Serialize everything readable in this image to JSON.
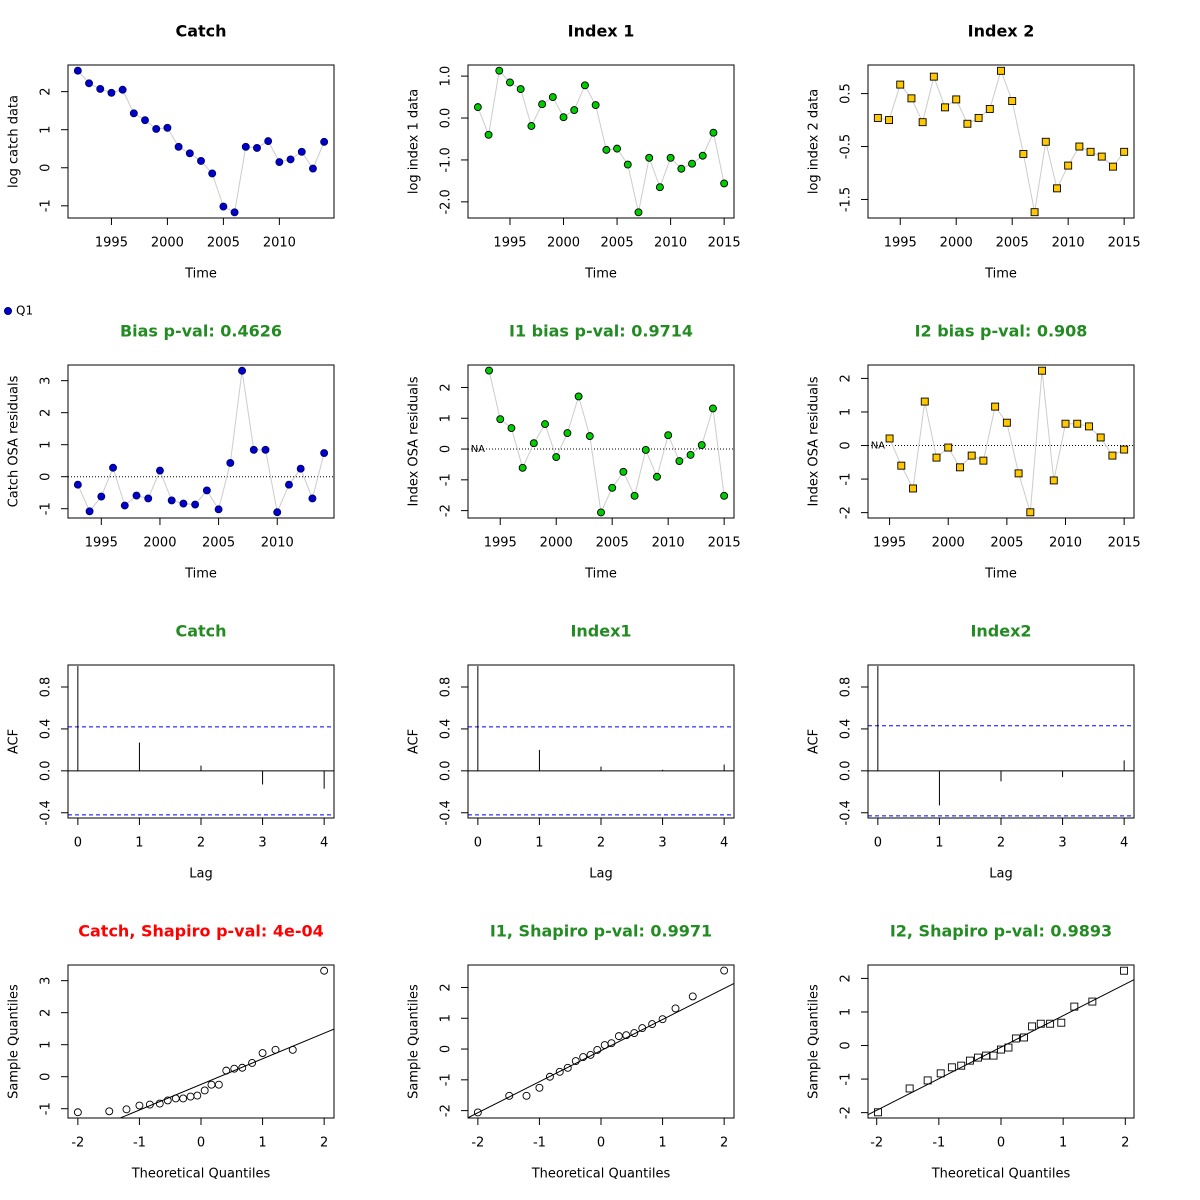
{
  "chart_data": [
    {
      "type": "line",
      "title": "Catch",
      "title_color": "#000000",
      "x_label": "Time",
      "y_label": "log catch data",
      "x": [
        1992,
        1993,
        1994,
        1995,
        1996,
        1997,
        1998,
        1999,
        2000,
        2001,
        2002,
        2003,
        2004,
        2005,
        2006,
        2007,
        2008,
        2009,
        2010,
        2011,
        2012,
        2013,
        2014
      ],
      "series": [
        {
          "name": "Q1",
          "color": "#0000cd",
          "values": [
            2.55,
            2.22,
            2.07,
            1.97,
            2.05,
            1.43,
            1.25,
            1.02,
            1.05,
            0.55,
            0.38,
            0.18,
            -0.15,
            -1.02,
            -1.17,
            0.55,
            0.52,
            0.7,
            0.15,
            0.22,
            0.42,
            -0.02,
            0.68
          ]
        }
      ],
      "marker": "circle",
      "xlim": [
        1991.12,
        2014.88
      ],
      "ylim": [
        -1.32,
        2.7
      ],
      "xticks": [
        1995,
        2000,
        2005,
        2010
      ],
      "yticks": [
        -1,
        0,
        1,
        2
      ]
    },
    {
      "type": "line",
      "title": "Index 1",
      "title_color": "#000000",
      "x_label": "Time",
      "y_label": "log index 1 data",
      "x": [
        1992,
        1993,
        1994,
        1995,
        1996,
        1997,
        1998,
        1999,
        2000,
        2001,
        2002,
        2003,
        2004,
        2005,
        2006,
        2007,
        2008,
        2009,
        2010,
        2011,
        2012,
        2013,
        2014,
        2015
      ],
      "values": [
        0.26,
        -0.4,
        1.13,
        0.85,
        0.69,
        -0.19,
        0.33,
        0.5,
        0.02,
        0.19,
        0.78,
        0.31,
        -0.76,
        -0.73,
        -1.11,
        -2.25,
        -0.95,
        -1.65,
        -0.95,
        -1.21,
        -1.09,
        -0.9,
        -0.35,
        -1.56
      ],
      "color": "#00cd00",
      "marker": "circle",
      "xlim": [
        1991.08,
        2015.92
      ],
      "ylim": [
        -2.385,
        1.265
      ],
      "xticks": [
        1995,
        2000,
        2005,
        2010,
        2015
      ],
      "yticks": [
        {
          "value": -2,
          "label": "-2.0"
        },
        {
          "value": -1,
          "label": "-1.0"
        },
        {
          "value": 0,
          "label": "0.0"
        },
        {
          "value": 1,
          "label": "1.0"
        }
      ]
    },
    {
      "type": "line",
      "title": "Index 2",
      "title_color": "#000000",
      "x_label": "Time",
      "y_label": "log index 2 data",
      "x": [
        1993,
        1994,
        1995,
        1996,
        1997,
        1998,
        1999,
        2000,
        2001,
        2002,
        2003,
        2004,
        2005,
        2006,
        2007,
        2008,
        2009,
        2010,
        2011,
        2012,
        2013,
        2014,
        2015
      ],
      "values": [
        0.04,
        0.0,
        0.67,
        0.41,
        -0.04,
        0.82,
        0.24,
        0.39,
        -0.07,
        0.04,
        0.21,
        0.93,
        0.36,
        -0.64,
        -1.74,
        -0.41,
        -1.29,
        -0.86,
        -0.5,
        -0.6,
        -0.69,
        -0.88,
        -0.6
      ],
      "color": "#ffc800",
      "marker": "square",
      "xlim": [
        1992.12,
        2015.88
      ],
      "ylim": [
        -1.85,
        1.04
      ],
      "xticks": [
        1995,
        2000,
        2005,
        2010,
        2015
      ],
      "yticks": [
        -1.5,
        -0.5,
        0.5
      ]
    },
    {
      "type": "line",
      "title": "Bias p-val: 0.4626",
      "title_color": "#228b22",
      "x_label": "Time",
      "y_label": "Catch OSA residuals",
      "x": [
        1993,
        1994,
        1995,
        1996,
        1997,
        1998,
        1999,
        2000,
        2001,
        2002,
        2003,
        2004,
        2005,
        2006,
        2007,
        2008,
        2009,
        2010,
        2011,
        2012,
        2013,
        2014
      ],
      "values": [
        -0.25,
        -1.08,
        -0.62,
        0.28,
        -0.9,
        -0.59,
        -0.68,
        0.19,
        -0.74,
        -0.84,
        -0.87,
        -0.43,
        -1.02,
        0.43,
        3.31,
        0.84,
        0.84,
        -1.11,
        -0.25,
        0.25,
        -0.68,
        0.74
      ],
      "color": "#0000cd",
      "marker": "circle",
      "hline": 0,
      "xlim": [
        1992.16,
        2014.84
      ],
      "ylim": [
        -1.29,
        3.49
      ],
      "xticks": [
        1995,
        2000,
        2005,
        2010
      ],
      "yticks": [
        -1,
        0,
        1,
        2,
        3
      ]
    },
    {
      "type": "line",
      "title": "I1 bias p-val: 0.9714",
      "title_color": "#228b22",
      "x_label": "Time",
      "y_label": "Index OSA residuals",
      "x": [
        1993,
        1994,
        1995,
        1996,
        1997,
        1998,
        1999,
        2000,
        2001,
        2002,
        2003,
        2004,
        2005,
        2006,
        2007,
        2008,
        2009,
        2010,
        2011,
        2012,
        2013,
        2014,
        2015
      ],
      "values": [
        null,
        2.55,
        0.97,
        0.68,
        -0.61,
        0.19,
        0.81,
        -0.26,
        0.52,
        1.71,
        0.42,
        -2.06,
        -1.26,
        -0.74,
        -1.52,
        -0.03,
        -0.9,
        0.45,
        -0.39,
        -0.19,
        0.13,
        1.32,
        -1.52
      ],
      "color": "#00cd00",
      "marker": "circle",
      "hline": 0,
      "annotations": [
        {
          "text": "NA",
          "x": 1993,
          "y": 0
        }
      ],
      "xlim": [
        1992.12,
        2015.88
      ],
      "ylim": [
        -2.24,
        2.73
      ],
      "xticks": [
        1995,
        2000,
        2005,
        2010,
        2015
      ],
      "yticks": [
        -2,
        -1,
        0,
        1,
        2
      ]
    },
    {
      "type": "line",
      "title": "I2 bias p-val: 0.908",
      "title_color": "#228b22",
      "x_label": "Time",
      "y_label": "Index OSA residuals",
      "x": [
        1994,
        1995,
        1996,
        1997,
        1998,
        1999,
        2000,
        2001,
        2002,
        2003,
        2004,
        2005,
        2006,
        2007,
        2008,
        2009,
        2010,
        2011,
        2012,
        2013,
        2014,
        2015
      ],
      "values": [
        null,
        0.21,
        -0.6,
        -1.28,
        1.31,
        -0.36,
        -0.06,
        -0.65,
        -0.3,
        -0.45,
        1.16,
        0.68,
        -0.83,
        -1.99,
        2.23,
        -1.04,
        0.65,
        0.65,
        0.57,
        0.24,
        -0.3,
        -0.12
      ],
      "color": "#ffc800",
      "marker": "square",
      "hline": 0,
      "annotations": [
        {
          "text": "NA",
          "x": 1994,
          "y": 0
        }
      ],
      "xlim": [
        1993.16,
        2015.84
      ],
      "ylim": [
        -2.16,
        2.4
      ],
      "xticks": [
        1995,
        2000,
        2005,
        2010,
        2015
      ],
      "yticks": [
        -2,
        -1,
        0,
        1,
        2
      ]
    },
    {
      "type": "acf",
      "title": "Catch",
      "title_color": "#228b22",
      "x_label": "Lag",
      "y_label": "ACF",
      "x": [
        0,
        1,
        2,
        3,
        4
      ],
      "values": [
        1,
        0.27,
        0.05,
        -0.13,
        -0.17
      ],
      "ci": 0.42,
      "ci_color": "#0000ff",
      "xlim": [
        -0.16,
        4.16
      ],
      "ylim": [
        -0.45,
        1.01
      ],
      "xticks": [
        0,
        1,
        2,
        3,
        4
      ],
      "yticks": [
        {
          "value": -0.4,
          "label": "-0.4"
        },
        {
          "value": 0,
          "label": "0.0"
        },
        {
          "value": 0.4,
          "label": "0.4"
        },
        {
          "value": 0.8,
          "label": "0.8"
        }
      ]
    },
    {
      "type": "acf",
      "title": "Index1",
      "title_color": "#228b22",
      "x_label": "Lag",
      "y_label": "ACF",
      "x": [
        0,
        1,
        2,
        3,
        4
      ],
      "values": [
        1,
        0.2,
        0.04,
        0.01,
        0.06
      ],
      "ci": 0.42,
      "ci_color": "#0000ff",
      "xlim": [
        -0.16,
        4.16
      ],
      "ylim": [
        -0.45,
        1.01
      ],
      "xticks": [
        0,
        1,
        2,
        3,
        4
      ],
      "yticks": [
        {
          "value": -0.4,
          "label": "-0.4"
        },
        {
          "value": 0,
          "label": "0.0"
        },
        {
          "value": 0.4,
          "label": "0.4"
        },
        {
          "value": 0.8,
          "label": "0.8"
        }
      ]
    },
    {
      "type": "acf",
      "title": "Index2",
      "title_color": "#228b22",
      "x_label": "Lag",
      "y_label": "ACF",
      "x": [
        0,
        1,
        2,
        3,
        4
      ],
      "values": [
        1,
        -0.33,
        -0.1,
        -0.06,
        0.1
      ],
      "ci": 0.43,
      "ci_color": "#0000ff",
      "xlim": [
        -0.16,
        4.16
      ],
      "ylim": [
        -0.45,
        1.01
      ],
      "xticks": [
        0,
        1,
        2,
        3,
        4
      ],
      "yticks": [
        {
          "value": -0.4,
          "label": "-0.4"
        },
        {
          "value": 0,
          "label": "0.0"
        },
        {
          "value": 0.4,
          "label": "0.4"
        },
        {
          "value": 0.8,
          "label": "0.8"
        }
      ]
    },
    {
      "type": "qq",
      "title": "Catch, Shapiro p-val: 4e-04",
      "title_color": "#ff0000",
      "x_label": "Theoretical Quantiles",
      "y_label": "Sample Quantiles",
      "x": [
        -2.0,
        -1.49,
        -1.21,
        -1.0,
        -0.83,
        -0.67,
        -0.54,
        -0.41,
        -0.29,
        -0.17,
        -0.06,
        0.06,
        0.17,
        0.29,
        0.41,
        0.54,
        0.67,
        0.83,
        1.0,
        1.21,
        1.49,
        2.0
      ],
      "values": [
        -1.11,
        -1.08,
        -1.02,
        -0.9,
        -0.87,
        -0.84,
        -0.74,
        -0.68,
        -0.68,
        -0.62,
        -0.59,
        -0.43,
        -0.25,
        -0.25,
        0.19,
        0.25,
        0.28,
        0.43,
        0.74,
        0.84,
        0.84,
        3.31
      ],
      "marker": "circle",
      "qqline": {
        "intercept": -0.24,
        "slope": 0.8
      },
      "xlim": [
        -2.16,
        2.16
      ],
      "ylim": [
        -1.29,
        3.49
      ],
      "xticks": [
        -2,
        -1,
        0,
        1,
        2
      ],
      "yticks": [
        -1,
        0,
        1,
        2,
        3
      ]
    },
    {
      "type": "qq",
      "title": "I1, Shapiro p-val: 0.9971",
      "title_color": "#228b22",
      "x_label": "Theoretical Quantiles",
      "y_label": "Sample Quantiles",
      "x": [
        -2.0,
        -1.49,
        -1.21,
        -1.0,
        -0.83,
        -0.67,
        -0.54,
        -0.41,
        -0.29,
        -0.17,
        -0.06,
        0.06,
        0.17,
        0.29,
        0.41,
        0.54,
        0.67,
        0.83,
        1.0,
        1.21,
        1.49,
        2.0
      ],
      "values": [
        -2.06,
        -1.52,
        -1.52,
        -1.26,
        -0.9,
        -0.74,
        -0.61,
        -0.39,
        -0.26,
        -0.19,
        -0.03,
        0.13,
        0.19,
        0.42,
        0.45,
        0.52,
        0.68,
        0.81,
        0.97,
        1.32,
        1.71,
        2.55
      ],
      "marker": "circle",
      "qqline": {
        "intercept": -0.05,
        "slope": 1.01
      },
      "xlim": [
        -2.16,
        2.16
      ],
      "ylim": [
        -2.24,
        2.73
      ],
      "xticks": [
        -2,
        -1,
        0,
        1,
        2
      ],
      "yticks": [
        -2,
        -1,
        0,
        1,
        2
      ]
    },
    {
      "type": "qq",
      "title": "I2, Shapiro p-val: 0.9893",
      "title_color": "#228b22",
      "x_label": "Theoretical Quantiles",
      "y_label": "Sample Quantiles",
      "x": [
        -1.98,
        -1.47,
        -1.18,
        -0.97,
        -0.79,
        -0.64,
        -0.5,
        -0.37,
        -0.24,
        -0.12,
        0,
        0.12,
        0.24,
        0.37,
        0.5,
        0.64,
        0.79,
        0.97,
        1.18,
        1.47,
        1.98
      ],
      "values": [
        -1.99,
        -1.28,
        -1.04,
        -0.83,
        -0.65,
        -0.6,
        -0.45,
        -0.36,
        -0.3,
        -0.3,
        -0.12,
        -0.06,
        0.21,
        0.24,
        0.57,
        0.65,
        0.65,
        0.68,
        1.16,
        1.31,
        2.23
      ],
      "marker": "square",
      "qqline": {
        "intercept": -0.05,
        "slope": 0.94
      },
      "xlim": [
        -2.14,
        2.14
      ],
      "ylim": [
        -2.16,
        2.4
      ],
      "xticks": [
        -2,
        -1,
        0,
        1,
        2
      ],
      "yticks": [
        -2,
        -1,
        0,
        1,
        2
      ]
    }
  ]
}
